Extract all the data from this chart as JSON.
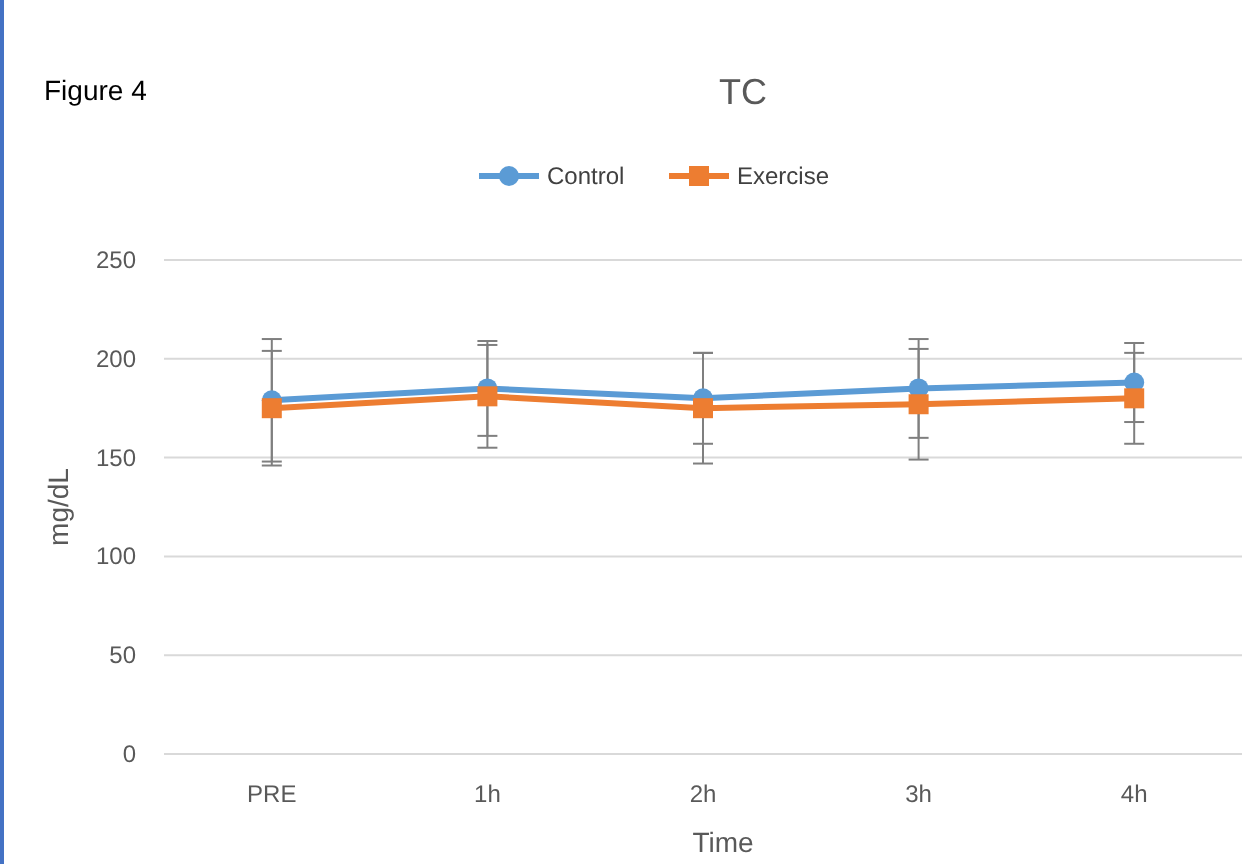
{
  "chart_data": {
    "type": "line",
    "title": "TC",
    "xlabel": "Time",
    "ylabel": "mg/dL",
    "annotations": [
      "Figure 4"
    ],
    "categories": [
      "PRE",
      "1h",
      "2h",
      "3h",
      "4h"
    ],
    "series": [
      {
        "name": "Control",
        "color": "#5b9bd5",
        "values": [
          179,
          185,
          180,
          185,
          188
        ],
        "errors": [
          31,
          24,
          23,
          25,
          20
        ]
      },
      {
        "name": "Exercise",
        "color": "#ed7d31",
        "values": [
          175,
          181,
          175,
          177,
          180
        ],
        "errors": [
          29,
          26,
          28,
          28,
          23
        ],
        "marker": "square"
      }
    ],
    "marker": "circle",
    "ylim": [
      0,
      250
    ],
    "yticks": [
      0,
      50,
      100,
      150,
      200,
      250
    ],
    "grid": "y",
    "legend": "top"
  }
}
